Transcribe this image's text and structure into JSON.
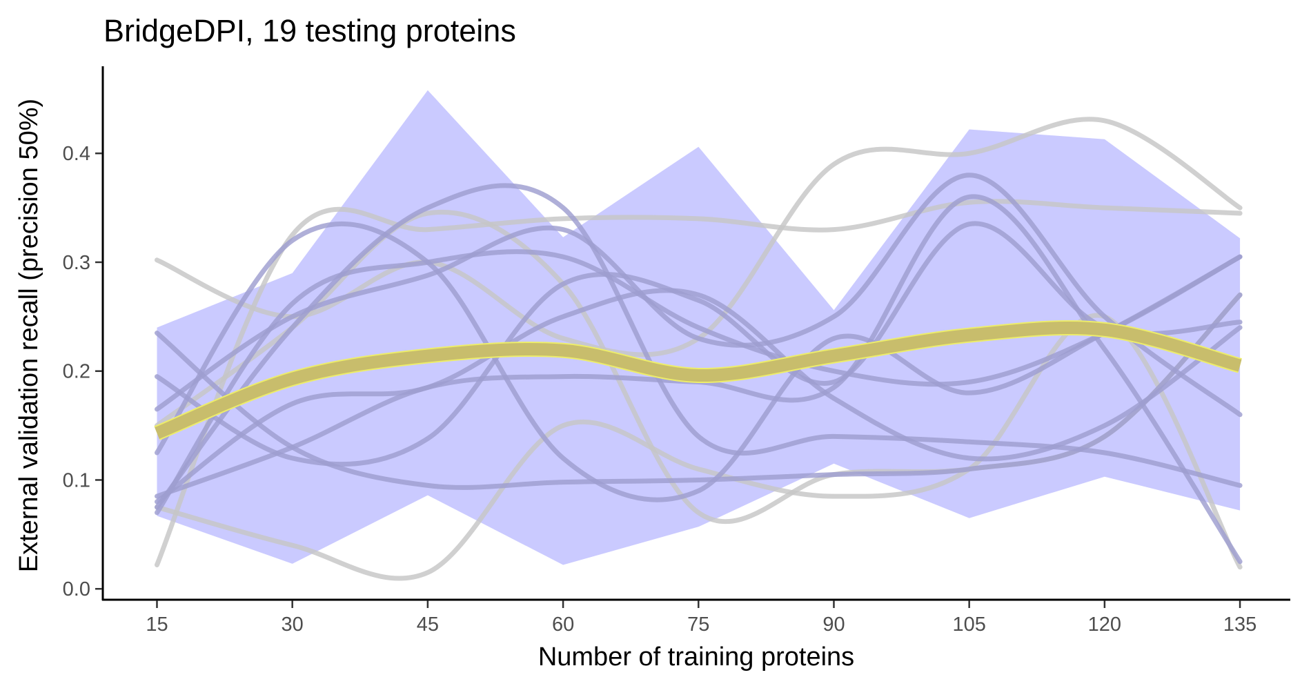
{
  "chart_data": {
    "type": "line",
    "title": "BridgeDPI, 19 testing proteins",
    "xlabel": "Number of training proteins",
    "ylabel": "External validation recall (precision 50%)",
    "x": [
      15,
      30,
      45,
      60,
      75,
      90,
      105,
      120,
      135
    ],
    "xticks": [
      "15",
      "30",
      "45",
      "60",
      "75",
      "90",
      "105",
      "120",
      "135"
    ],
    "yticks": [
      "0.0",
      "0.1",
      "0.2",
      "0.3",
      "0.4"
    ],
    "xlim": [
      9,
      140.5
    ],
    "ylim": [
      -0.01,
      0.48
    ],
    "grid": false,
    "legend": "none",
    "colors": {
      "ribbon": "#b3b3ff",
      "lines": "#9e9ecf",
      "outer_lines": "#c6c6c6",
      "mean": "#c8bd6c",
      "mean_edge": "#eded6a"
    },
    "band": {
      "upper": [
        0.24,
        0.29,
        0.458,
        0.323,
        0.406,
        0.256,
        0.422,
        0.413,
        0.322
      ],
      "lower": [
        0.067,
        0.023,
        0.086,
        0.022,
        0.057,
        0.115,
        0.065,
        0.103,
        0.072
      ]
    },
    "mean": [
      0.143,
      0.193,
      0.214,
      0.219,
      0.196,
      0.214,
      0.233,
      0.238,
      0.205
    ],
    "series": [
      {
        "group": "background",
        "values": [
          0.302,
          0.25,
          0.3,
          0.23,
          0.23,
          0.39,
          0.4,
          0.43,
          0.35
        ]
      },
      {
        "group": "background",
        "values": [
          0.022,
          0.325,
          0.33,
          0.34,
          0.34,
          0.33,
          0.355,
          0.35,
          0.345
        ]
      },
      {
        "group": "background",
        "values": [
          0.075,
          0.04,
          0.015,
          0.15,
          0.11,
          0.085,
          0.11,
          0.25,
          0.02
        ]
      },
      {
        "group": "background",
        "values": [
          0.15,
          0.24,
          0.345,
          0.28,
          0.07,
          0.105,
          0.11,
          0.14,
          0.27
        ]
      },
      {
        "group": "samples",
        "values": [
          0.235,
          0.13,
          0.095,
          0.098,
          0.1,
          0.105,
          0.11,
          0.14,
          0.27
        ]
      },
      {
        "group": "samples",
        "values": [
          0.195,
          0.12,
          0.138,
          0.28,
          0.265,
          0.19,
          0.335,
          0.24,
          0.245
        ]
      },
      {
        "group": "samples",
        "values": [
          0.165,
          0.25,
          0.288,
          0.33,
          0.23,
          0.25,
          0.38,
          0.25,
          0.16
        ]
      },
      {
        "group": "samples",
        "values": [
          0.125,
          0.32,
          0.3,
          0.12,
          0.09,
          0.23,
          0.18,
          0.235,
          0.305
        ]
      },
      {
        "group": "samples",
        "values": [
          0.085,
          0.13,
          0.185,
          0.195,
          0.19,
          0.185,
          0.36,
          0.22,
          0.025
        ]
      },
      {
        "group": "samples",
        "values": [
          0.08,
          0.17,
          0.185,
          0.25,
          0.27,
          0.175,
          0.12,
          0.15,
          0.24
        ]
      },
      {
        "group": "samples",
        "values": [
          0.075,
          0.24,
          0.35,
          0.35,
          0.14,
          0.14,
          0.135,
          0.125,
          0.095
        ]
      },
      {
        "group": "samples",
        "values": [
          0.07,
          0.262,
          0.3,
          0.305,
          0.24,
          0.2,
          0.19,
          0.235,
          0.305
        ]
      }
    ]
  }
}
